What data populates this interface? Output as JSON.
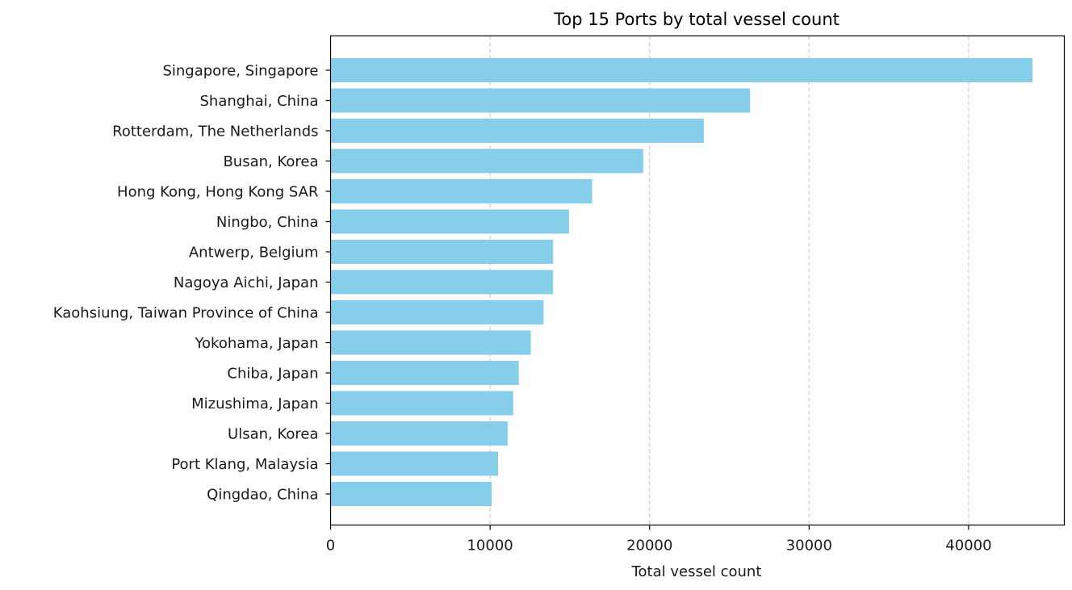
{
  "chart_data": {
    "type": "bar",
    "orientation": "horizontal",
    "title": "Top 15 Ports by total vessel count",
    "xlabel": "Total vessel count",
    "ylabel": "",
    "xlim": [
      0,
      46000
    ],
    "xticks": [
      0,
      10000,
      20000,
      30000,
      40000
    ],
    "grid": "x-dashed",
    "bar_color": "#87ceeb",
    "categories": [
      "Singapore, Singapore",
      "Shanghai, China",
      "Rotterdam, The Netherlands",
      "Busan, Korea",
      "Hong Kong, Hong Kong SAR",
      "Ningbo, China",
      "Antwerp, Belgium",
      "Nagoya Aichi, Japan",
      "Kaohsiung, Taiwan Province of China",
      "Yokohama, Japan",
      "Chiba, Japan",
      "Mizushima, Japan",
      "Ulsan, Korea",
      "Port Klang, Malaysia",
      "Qingdao, China"
    ],
    "values": [
      44000,
      26300,
      23400,
      19600,
      16400,
      14950,
      13950,
      13950,
      13350,
      12550,
      11800,
      11450,
      11100,
      10500,
      10100
    ]
  }
}
